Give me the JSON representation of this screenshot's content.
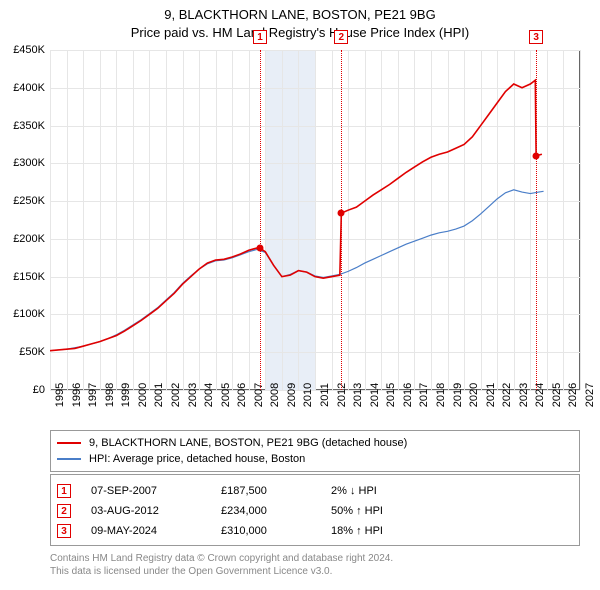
{
  "title": {
    "line1": "9, BLACKTHORN LANE, BOSTON, PE21 9BG",
    "line2": "Price paid vs. HM Land Registry's House Price Index (HPI)"
  },
  "chart": {
    "type": "line",
    "background_color": "#ffffff",
    "grid_color": "#e6e6e6",
    "axis_color": "#666666",
    "font_family": "Arial",
    "label_fontsize": 11,
    "title_fontsize": 13,
    "x": {
      "min": 1995,
      "max": 2027,
      "ticks": [
        1995,
        1996,
        1997,
        1998,
        1999,
        2000,
        2001,
        2002,
        2003,
        2004,
        2005,
        2006,
        2007,
        2008,
        2009,
        2010,
        2011,
        2012,
        2013,
        2014,
        2015,
        2016,
        2017,
        2018,
        2019,
        2020,
        2021,
        2022,
        2023,
        2024,
        2025,
        2026,
        2027
      ],
      "tick_labels": [
        "1995",
        "1996",
        "1997",
        "1998",
        "1999",
        "2000",
        "2001",
        "2002",
        "2003",
        "2004",
        "2005",
        "2006",
        "2007",
        "2008",
        "2009",
        "2010",
        "2011",
        "2012",
        "2013",
        "2014",
        "2015",
        "2016",
        "2017",
        "2018",
        "2019",
        "2020",
        "2021",
        "2022",
        "2023",
        "2024",
        "2025",
        "2026",
        "2027"
      ],
      "rotation": -90
    },
    "y": {
      "min": 0,
      "max": 450000,
      "ticks": [
        0,
        50000,
        100000,
        150000,
        200000,
        250000,
        300000,
        350000,
        400000,
        450000
      ],
      "tick_labels": [
        "£0",
        "£50K",
        "£100K",
        "£150K",
        "£200K",
        "£250K",
        "£300K",
        "£350K",
        "£400K",
        "£450K"
      ]
    },
    "shaded_band": {
      "x_start": 2008.0,
      "x_end": 2011.0,
      "color": "#e8eef7"
    },
    "event_vlines": {
      "color": "#e00000",
      "style": "dotted",
      "positions": [
        2007.68,
        2012.59,
        2024.35
      ]
    },
    "series": [
      {
        "name": "property",
        "label": "9, BLACKTHORN LANE, BOSTON, PE21 9BG (detached house)",
        "color": "#e00000",
        "line_width": 1.6,
        "data": [
          [
            1995.0,
            52000
          ],
          [
            1995.5,
            53000
          ],
          [
            1996.0,
            54000
          ],
          [
            1996.5,
            55000
          ],
          [
            1997.0,
            58000
          ],
          [
            1997.5,
            61000
          ],
          [
            1998.0,
            64000
          ],
          [
            1998.5,
            68000
          ],
          [
            1999.0,
            72000
          ],
          [
            1999.5,
            78000
          ],
          [
            2000.0,
            85000
          ],
          [
            2000.5,
            92000
          ],
          [
            2001.0,
            100000
          ],
          [
            2001.5,
            108000
          ],
          [
            2002.0,
            118000
          ],
          [
            2002.5,
            128000
          ],
          [
            2003.0,
            140000
          ],
          [
            2003.5,
            150000
          ],
          [
            2004.0,
            160000
          ],
          [
            2004.5,
            168000
          ],
          [
            2005.0,
            172000
          ],
          [
            2005.5,
            173000
          ],
          [
            2006.0,
            176000
          ],
          [
            2006.5,
            180000
          ],
          [
            2007.0,
            185000
          ],
          [
            2007.5,
            188000
          ],
          [
            2007.68,
            187500
          ],
          [
            2008.0,
            183000
          ],
          [
            2008.5,
            165000
          ],
          [
            2009.0,
            150000
          ],
          [
            2009.5,
            152000
          ],
          [
            2010.0,
            158000
          ],
          [
            2010.5,
            156000
          ],
          [
            2011.0,
            150000
          ],
          [
            2011.5,
            148000
          ],
          [
            2012.0,
            150000
          ],
          [
            2012.5,
            152000
          ],
          [
            2012.59,
            234000
          ],
          [
            2013.0,
            238000
          ],
          [
            2013.5,
            242000
          ],
          [
            2014.0,
            250000
          ],
          [
            2014.5,
            258000
          ],
          [
            2015.0,
            265000
          ],
          [
            2015.5,
            272000
          ],
          [
            2016.0,
            280000
          ],
          [
            2016.5,
            288000
          ],
          [
            2017.0,
            295000
          ],
          [
            2017.5,
            302000
          ],
          [
            2018.0,
            308000
          ],
          [
            2018.5,
            312000
          ],
          [
            2019.0,
            315000
          ],
          [
            2019.5,
            320000
          ],
          [
            2020.0,
            325000
          ],
          [
            2020.5,
            335000
          ],
          [
            2021.0,
            350000
          ],
          [
            2021.5,
            365000
          ],
          [
            2022.0,
            380000
          ],
          [
            2022.5,
            395000
          ],
          [
            2023.0,
            405000
          ],
          [
            2023.5,
            400000
          ],
          [
            2024.0,
            405000
          ],
          [
            2024.3,
            410000
          ],
          [
            2024.35,
            310000
          ],
          [
            2024.7,
            312000
          ]
        ]
      },
      {
        "name": "hpi",
        "label": "HPI: Average price, detached house, Boston",
        "color": "#4a7ec8",
        "line_width": 1.2,
        "data": [
          [
            1995.0,
            52000
          ],
          [
            1995.5,
            53000
          ],
          [
            1996.0,
            54000
          ],
          [
            1996.5,
            56000
          ],
          [
            1997.0,
            58000
          ],
          [
            1997.5,
            61000
          ],
          [
            1998.0,
            64000
          ],
          [
            1998.5,
            68000
          ],
          [
            1999.0,
            73000
          ],
          [
            1999.5,
            79000
          ],
          [
            2000.0,
            86000
          ],
          [
            2000.5,
            93000
          ],
          [
            2001.0,
            101000
          ],
          [
            2001.5,
            109000
          ],
          [
            2002.0,
            119000
          ],
          [
            2002.5,
            129000
          ],
          [
            2003.0,
            141000
          ],
          [
            2003.5,
            151000
          ],
          [
            2004.0,
            160000
          ],
          [
            2004.5,
            167000
          ],
          [
            2005.0,
            171000
          ],
          [
            2005.5,
            172000
          ],
          [
            2006.0,
            175000
          ],
          [
            2006.5,
            179000
          ],
          [
            2007.0,
            183000
          ],
          [
            2007.5,
            186000
          ],
          [
            2008.0,
            182000
          ],
          [
            2008.5,
            165000
          ],
          [
            2009.0,
            150000
          ],
          [
            2009.5,
            153000
          ],
          [
            2010.0,
            158000
          ],
          [
            2010.5,
            156000
          ],
          [
            2011.0,
            151000
          ],
          [
            2011.5,
            149000
          ],
          [
            2012.0,
            151000
          ],
          [
            2012.5,
            153000
          ],
          [
            2013.0,
            157000
          ],
          [
            2013.5,
            162000
          ],
          [
            2014.0,
            168000
          ],
          [
            2014.5,
            173000
          ],
          [
            2015.0,
            178000
          ],
          [
            2015.5,
            183000
          ],
          [
            2016.0,
            188000
          ],
          [
            2016.5,
            193000
          ],
          [
            2017.0,
            197000
          ],
          [
            2017.5,
            201000
          ],
          [
            2018.0,
            205000
          ],
          [
            2018.5,
            208000
          ],
          [
            2019.0,
            210000
          ],
          [
            2019.5,
            213000
          ],
          [
            2020.0,
            217000
          ],
          [
            2020.5,
            224000
          ],
          [
            2021.0,
            233000
          ],
          [
            2021.5,
            243000
          ],
          [
            2022.0,
            253000
          ],
          [
            2022.5,
            261000
          ],
          [
            2023.0,
            265000
          ],
          [
            2023.5,
            262000
          ],
          [
            2024.0,
            260000
          ],
          [
            2024.5,
            262000
          ],
          [
            2024.8,
            263000
          ]
        ]
      }
    ],
    "event_points": [
      {
        "x": 2007.68,
        "y": 187500,
        "color": "#e00000"
      },
      {
        "x": 2012.59,
        "y": 234000,
        "color": "#e00000"
      },
      {
        "x": 2024.35,
        "y": 310000,
        "color": "#e00000"
      }
    ]
  },
  "legend": {
    "items": [
      {
        "color": "#e00000",
        "label": "9, BLACKTHORN LANE, BOSTON, PE21 9BG (detached house)"
      },
      {
        "color": "#4a7ec8",
        "label": "HPI: Average price, detached house, Boston"
      }
    ]
  },
  "events": [
    {
      "n": "1",
      "date": "07-SEP-2007",
      "price": "£187,500",
      "pct": "2%",
      "dir": "↓",
      "suffix": "HPI"
    },
    {
      "n": "2",
      "date": "03-AUG-2012",
      "price": "£234,000",
      "pct": "50%",
      "dir": "↑",
      "suffix": "HPI"
    },
    {
      "n": "3",
      "date": "09-MAY-2024",
      "price": "£310,000",
      "pct": "18%",
      "dir": "↑",
      "suffix": "HPI"
    }
  ],
  "footer": {
    "line1": "Contains HM Land Registry data © Crown copyright and database right 2024.",
    "line2": "This data is licensed under the Open Government Licence v3.0."
  }
}
